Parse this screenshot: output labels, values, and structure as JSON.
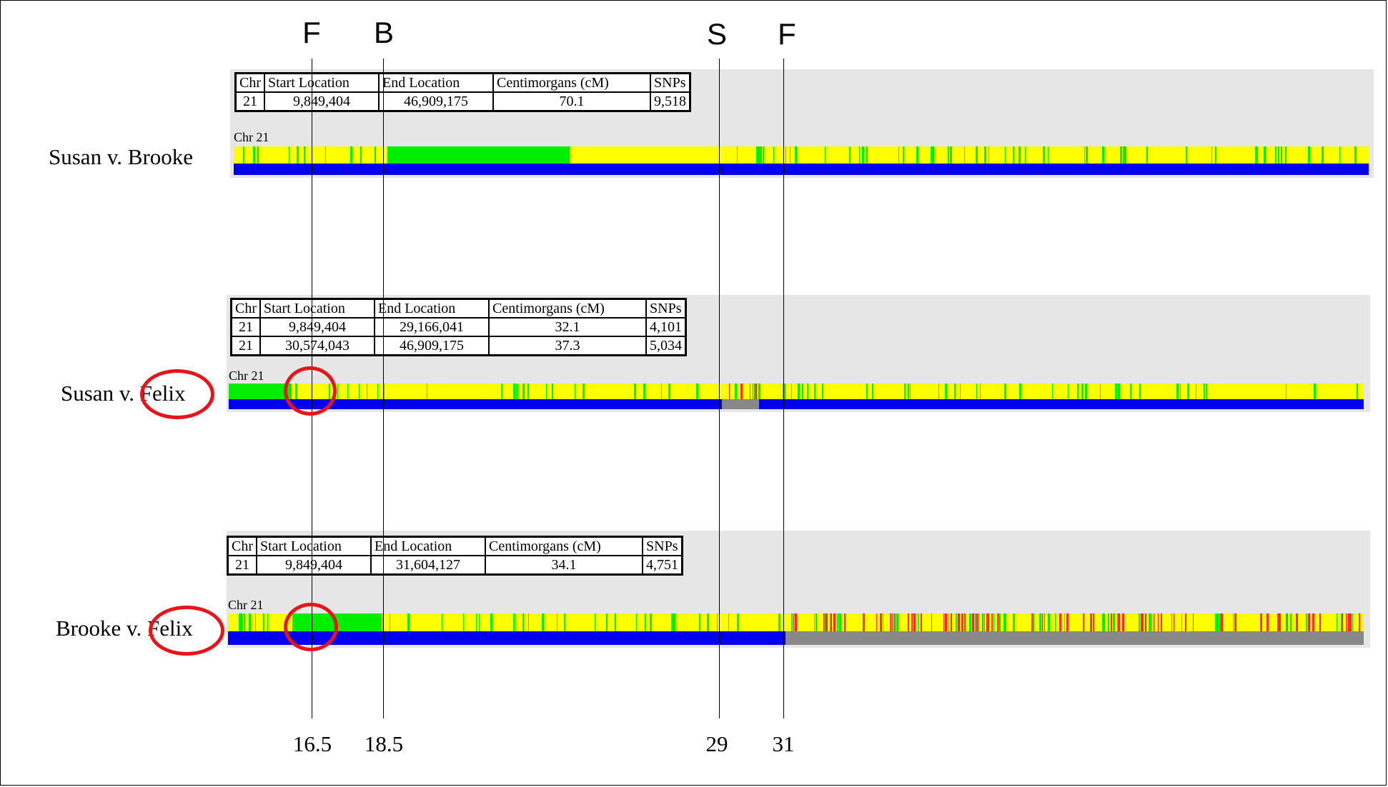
{
  "colors": {
    "full_match": "#00ee00",
    "half_match": "#ffff00",
    "no_match": "#ff2a2a",
    "segment": "#0000ee",
    "no_segment": "#888888",
    "panel_bg": "#e6e6e6",
    "annotation_circle": "#e8141a"
  },
  "table_headers": [
    "Chr",
    "Start Location",
    "End Location",
    "Centimorgans (cM)",
    "SNPs"
  ],
  "chr_label": "Chr 21",
  "comparisons": [
    {
      "label": "Susan v. Brooke",
      "rows": [
        {
          "chr": "21",
          "start": "9,849,404",
          "end": "46,909,175",
          "cm": "70.1",
          "snps": "9,518"
        }
      ]
    },
    {
      "label": "Susan v. Felix",
      "rows": [
        {
          "chr": "21",
          "start": "9,849,404",
          "end": "29,166,041",
          "cm": "32.1",
          "snps": "4,101"
        },
        {
          "chr": "21",
          "start": "30,574,043",
          "end": "46,909,175",
          "cm": "37.3",
          "snps": "5,034"
        }
      ]
    },
    {
      "label": "Brooke v. Felix",
      "rows": [
        {
          "chr": "21",
          "start": "9,849,404",
          "end": "31,604,127",
          "cm": "34.1",
          "snps": "4,751"
        }
      ]
    }
  ],
  "markers": [
    {
      "letter": "F",
      "value": "16.5"
    },
    {
      "letter": "B",
      "value": "18.5"
    },
    {
      "letter": "S",
      "value": "29"
    },
    {
      "letter": "F",
      "value": "31"
    }
  ]
}
